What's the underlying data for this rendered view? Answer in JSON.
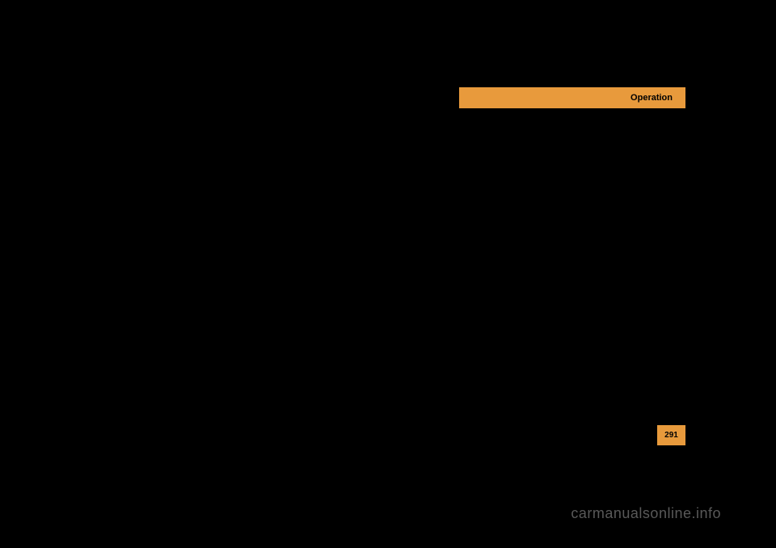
{
  "header": {
    "label": "Operation",
    "background_color": "#e89a3c",
    "text_color": "#000000"
  },
  "page_number": {
    "value": "291",
    "background_color": "#e89a3c",
    "text_color": "#000000"
  },
  "watermark": {
    "text": "carmanualsonline.info",
    "text_color": "#595959"
  },
  "page_background": "#000000"
}
